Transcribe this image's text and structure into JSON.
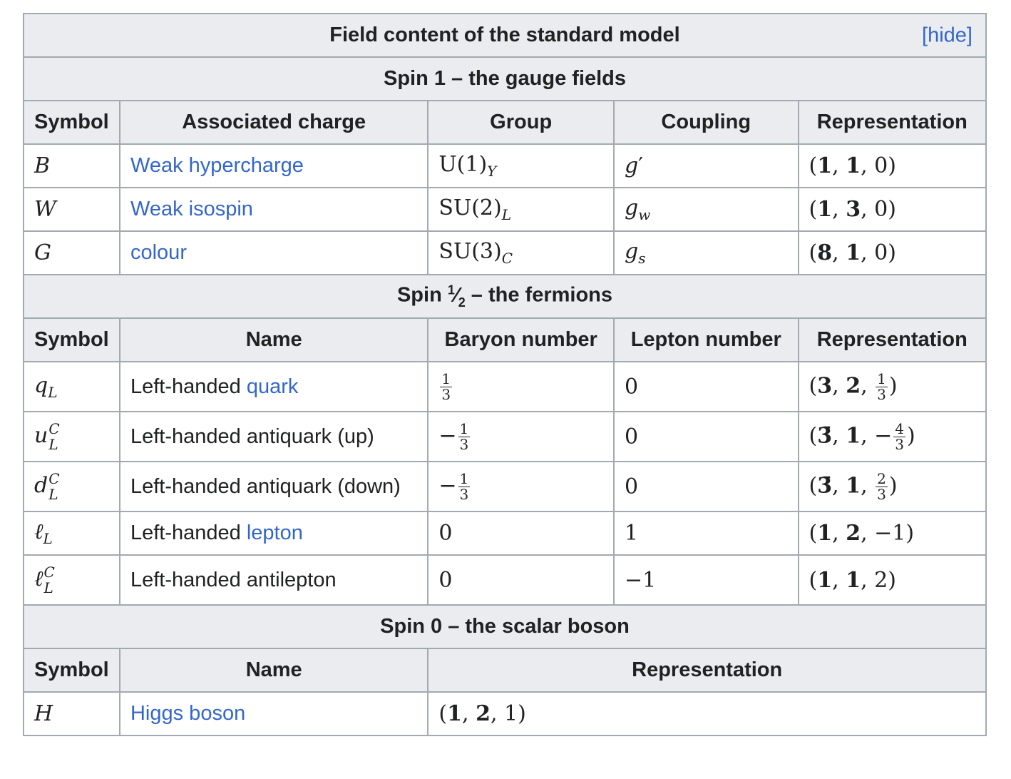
{
  "title": "Field content of the standard model",
  "hide_label": "[hide]",
  "gauge": {
    "section_title": "Spin 1 – the gauge fields",
    "headers": [
      "Symbol",
      "Associated charge",
      "Group",
      "Coupling",
      "Representation"
    ],
    "rows": [
      {
        "symbol": "B",
        "charge": "Weak hypercharge",
        "group_base": "U(1)",
        "group_sub": "Y",
        "coupling_base": "g",
        "coupling_mark": "′",
        "coupling_sub": "",
        "rep": [
          "1",
          "1",
          "0"
        ]
      },
      {
        "symbol": "W",
        "charge": "Weak isospin",
        "group_base": "SU(2)",
        "group_sub": "L",
        "coupling_base": "g",
        "coupling_mark": "",
        "coupling_sub": "w",
        "rep": [
          "1",
          "3",
          "0"
        ]
      },
      {
        "symbol": "G",
        "charge": "colour",
        "group_base": "SU(3)",
        "group_sub": "C",
        "coupling_base": "g",
        "coupling_mark": "",
        "coupling_sub": "s",
        "rep": [
          "8",
          "1",
          "0"
        ]
      }
    ]
  },
  "fermions": {
    "section_title_prefix": "Spin ",
    "section_frac_num": "1",
    "section_frac_den": "2",
    "section_title_suffix": " – the fermions",
    "headers": [
      "Symbol",
      "Name",
      "Baryon number",
      "Lepton number",
      "Representation"
    ],
    "rows": [
      {
        "symbol": "q",
        "sym_sup": "",
        "sym_sub": "L",
        "name_prefix": "Left-handed ",
        "name_link": "quark",
        "baryon": {
          "sign": "",
          "num": "1",
          "den": "3"
        },
        "lepton": "0",
        "rep_a": "3",
        "rep_b": "2",
        "rep_c": {
          "sign": "",
          "num": "1",
          "den": "3"
        }
      },
      {
        "symbol": "u",
        "sym_sup": "C",
        "sym_sub": "L",
        "name_prefix": "Left-handed antiquark (up)",
        "name_link": "",
        "baryon": {
          "sign": "−",
          "num": "1",
          "den": "3"
        },
        "lepton": "0",
        "rep_a": "3̄",
        "rep_b": "1",
        "rep_c": {
          "sign": "−",
          "num": "4",
          "den": "3"
        }
      },
      {
        "symbol": "d",
        "sym_sup": "C",
        "sym_sub": "L",
        "name_prefix": "Left-handed antiquark (down)",
        "name_link": "",
        "baryon": {
          "sign": "−",
          "num": "1",
          "den": "3"
        },
        "lepton": "0",
        "rep_a": "3̄",
        "rep_b": "1",
        "rep_c": {
          "sign": "",
          "num": "2",
          "den": "3"
        }
      },
      {
        "symbol": "ℓ",
        "sym_sup": "",
        "sym_sub": "L",
        "name_prefix": "Left-handed ",
        "name_link": "lepton",
        "baryon_plain": "0",
        "lepton": "1",
        "rep_plain": [
          "1",
          "2",
          "−1"
        ]
      },
      {
        "symbol": "ℓ",
        "sym_sup": "C",
        "sym_sub": "L",
        "name_prefix": "Left-handed antilepton",
        "name_link": "",
        "baryon_plain": "0",
        "lepton": "−1",
        "rep_plain": [
          "1",
          "1",
          "2"
        ]
      }
    ]
  },
  "scalar": {
    "section_title": "Spin 0 – the scalar boson",
    "headers": [
      "Symbol",
      "Name",
      "Representation"
    ],
    "rows": [
      {
        "symbol": "H",
        "name": "Higgs boson",
        "rep": [
          "1",
          "2",
          "1"
        ]
      }
    ]
  },
  "colors": {
    "header_bg": "#eaecf0",
    "section_bg": "#fddea6",
    "link": "#3366cc",
    "border": "#a2a9b1"
  }
}
